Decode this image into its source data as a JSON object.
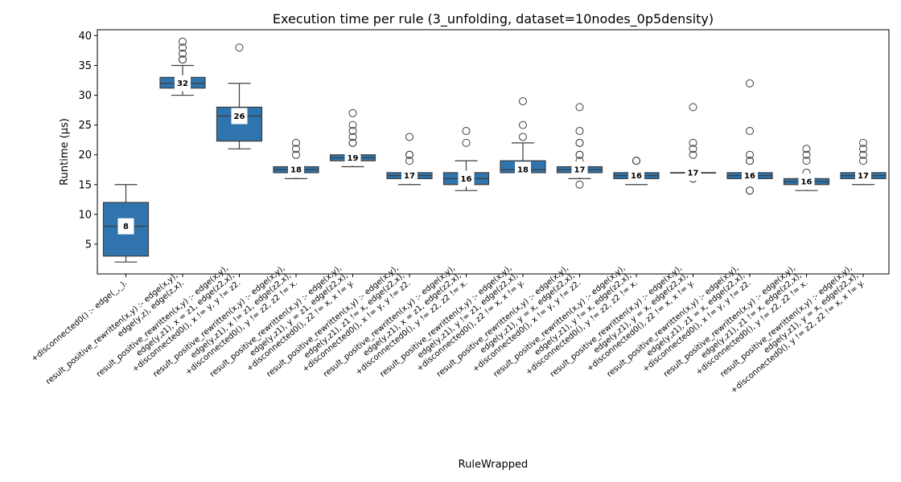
{
  "chart_data": {
    "type": "box",
    "title": "Execution time per rule (3_unfolding, dataset=10nodes_0p5density)",
    "xlabel": "RuleWrapped",
    "ylabel": "Runtime (µs)",
    "ylim": [
      0,
      41
    ],
    "yticks": [
      5,
      10,
      15,
      20,
      25,
      30,
      35,
      40
    ],
    "box_color": "#2f74ad",
    "categories": [
      [
        "+disconnected0() :-     edge(_,_)."
      ],
      [
        "result_positive_rewritten(x,y) :-     edge(x,y),",
        "edge(y,z),    edge(z,x)."
      ],
      [
        "result_positive_rewritten(x,y) :-     edge(x,y),",
        "edge(y,z1),    x = z1,    edge(z2,x),",
        "+disconnected0(),    x != y,    y != z2."
      ],
      [
        "result_positive_rewritten(x,y) :-     edge(x,y),",
        "edge(y,z1),    x != z1,    edge(z2,x),",
        "+disconnected0(),    y != z2,    z2 != x."
      ],
      [
        "result_positive_rewritten(x,y) :-     edge(x,y),",
        "edge(y,z1),    y = z1,    edge(z2,x),",
        "+disconnected0(),    z2 != x,    x != y."
      ],
      [
        "result_positive_rewritten(x,y) :-     edge(x,y),",
        "edge(y,z1),    z1 != x,    edge(z2,x),",
        "+disconnected0(),    x != y,    y != z2."
      ],
      [
        "result_positive_rewritten(x,y) :-     edge(x,y),",
        "edge(y,z1),    x = z1,    edge(z2,x),",
        "+disconnected0(),    y != z2,    z2 != x."
      ],
      [
        "result_positive_rewritten(x,y) :-     edge(x,y),",
        "edge(y,z1),    y != z1,    edge(z2,x),",
        "+disconnected0(),    z2 != x,    x != y."
      ],
      [
        "result_positive_rewritten(x,y) :-     edge(x,y),",
        "edge(y,z1),    y = x,    edge(z2,x),",
        "+disconnected0(),    x != y,    y != z2."
      ],
      [
        "result_positive_rewritten(x,y) :-     edge(x,y),",
        "edge(y,z1),    y != x,    edge(z2,x),",
        "+disconnected0(),    y != z2,    z2 != x."
      ],
      [
        "result_positive_rewritten(x,y) :-     edge(x,y),",
        "edge(y,z1),    y = x,    edge(z2,x),",
        "+disconnected0(),    z2 != x,    x != y."
      ],
      [
        "result_positive_rewritten(x,y) :-     edge(x,y),",
        "edge(y,z1),    z1 = x,    edge(z2,x),",
        "+disconnected0(),    x != y,    y != z2."
      ],
      [
        "result_positive_rewritten(x,y) :-     edge(x,y),",
        "edge(y,z1),    z1 != x,    edge(z2,x),",
        "+disconnected0(),    y != z2,    z2 != x."
      ],
      [
        "result_positive_rewritten(x,y) :-     edge(x,y),",
        "edge(y,z1),    y = x,    edge(z2,x),",
        "+disconnected0(),    y != z2,    z2 != x,    x != y."
      ]
    ],
    "boxes": [
      {
        "q1": 3,
        "median": 8,
        "q3": 12,
        "whislo": 2,
        "whishi": 15,
        "fliers": [],
        "label": "8"
      },
      {
        "q1": 31.2,
        "median": 32,
        "q3": 33,
        "whislo": 30,
        "whishi": 35,
        "fliers": [
          36,
          36,
          37,
          38,
          39
        ],
        "label": "32"
      },
      {
        "q1": 22.3,
        "median": 26.5,
        "q3": 28,
        "whislo": 21,
        "whishi": 32,
        "fliers": [
          38
        ],
        "label": "26"
      },
      {
        "q1": 17,
        "median": 17.5,
        "q3": 18,
        "whislo": 16,
        "whishi": 18,
        "fliers": [
          20,
          21,
          22
        ],
        "label": "18"
      },
      {
        "q1": 19,
        "median": 19.5,
        "q3": 20,
        "whislo": 18,
        "whishi": 20,
        "fliers": [
          22,
          22,
          23,
          24,
          25,
          27
        ],
        "label": "19"
      },
      {
        "q1": 16,
        "median": 16.5,
        "q3": 17,
        "whislo": 15,
        "whishi": 17,
        "fliers": [
          19,
          20,
          20,
          23
        ],
        "label": "17"
      },
      {
        "q1": 15,
        "median": 16,
        "q3": 17,
        "whislo": 14,
        "whishi": 19,
        "fliers": [
          22,
          24
        ],
        "label": "16"
      },
      {
        "q1": 17,
        "median": 17.5,
        "q3": 19,
        "whislo": 17,
        "whishi": 22,
        "fliers": [
          23,
          25,
          29
        ],
        "label": "18"
      },
      {
        "q1": 17,
        "median": 17.5,
        "q3": 18,
        "whislo": 16,
        "whishi": 18,
        "fliers": [
          15,
          19,
          20,
          20,
          22,
          22,
          24,
          28
        ],
        "label": "17"
      },
      {
        "q1": 16,
        "median": 16.5,
        "q3": 17,
        "whislo": 15,
        "whishi": 17,
        "fliers": [
          19,
          19,
          19
        ],
        "label": "16"
      },
      {
        "q1": 17,
        "median": 17,
        "q3": 17,
        "whislo": 17,
        "whishi": 17,
        "fliers": [
          16,
          16,
          20,
          21,
          22,
          28
        ],
        "label": "17"
      },
      {
        "q1": 16,
        "median": 16.5,
        "q3": 17,
        "whislo": 16,
        "whishi": 17,
        "fliers": [
          14,
          14,
          19,
          19,
          20,
          24,
          32
        ],
        "label": "16"
      },
      {
        "q1": 15,
        "median": 15.5,
        "q3": 16,
        "whislo": 14,
        "whishi": 16,
        "fliers": [
          17,
          19,
          20,
          21
        ],
        "label": "16"
      },
      {
        "q1": 16,
        "median": 16.5,
        "q3": 17,
        "whislo": 15,
        "whishi": 17,
        "fliers": [
          19,
          20,
          21,
          22
        ],
        "label": "17"
      }
    ]
  }
}
